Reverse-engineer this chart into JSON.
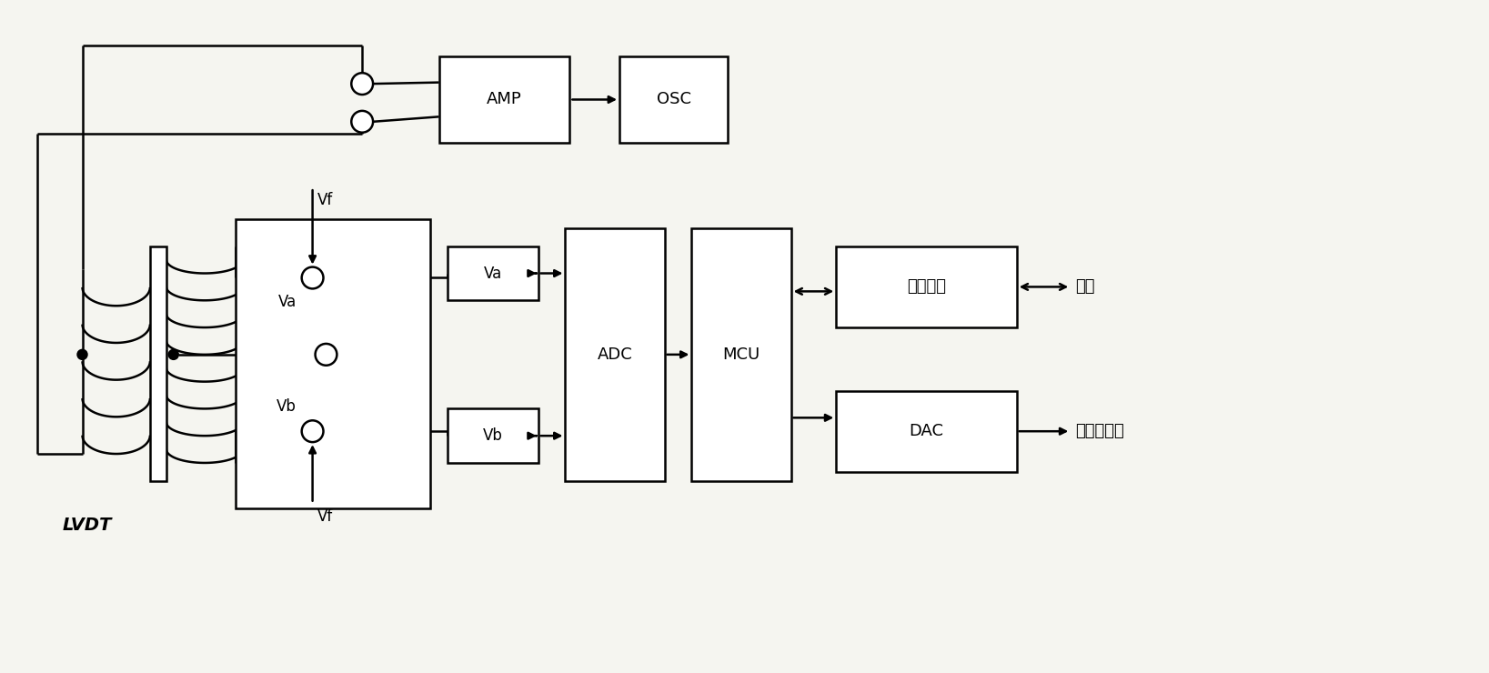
{
  "bg_color": "#f5f5f0",
  "line_color": "#000000",
  "lw": 1.8,
  "fig_w": 16.37,
  "fig_h": 7.4,
  "labels": {
    "AMP": "AMP",
    "OSC": "OSC",
    "Va_box": "Va",
    "Vb_box": "Vb",
    "ADC": "ADC",
    "MCU": "MCU",
    "recv": "收发装置",
    "DAC": "DAC",
    "LVDT": "LVDT",
    "tongxin": "通信",
    "moni": "模拟量输入",
    "Va_label": "Va",
    "Vb_label": "Vb",
    "Vf_top": "Vf",
    "Vf_bot": "Vf"
  },
  "fs_block": 13,
  "fs_label": 12,
  "fs_lvdt": 14
}
